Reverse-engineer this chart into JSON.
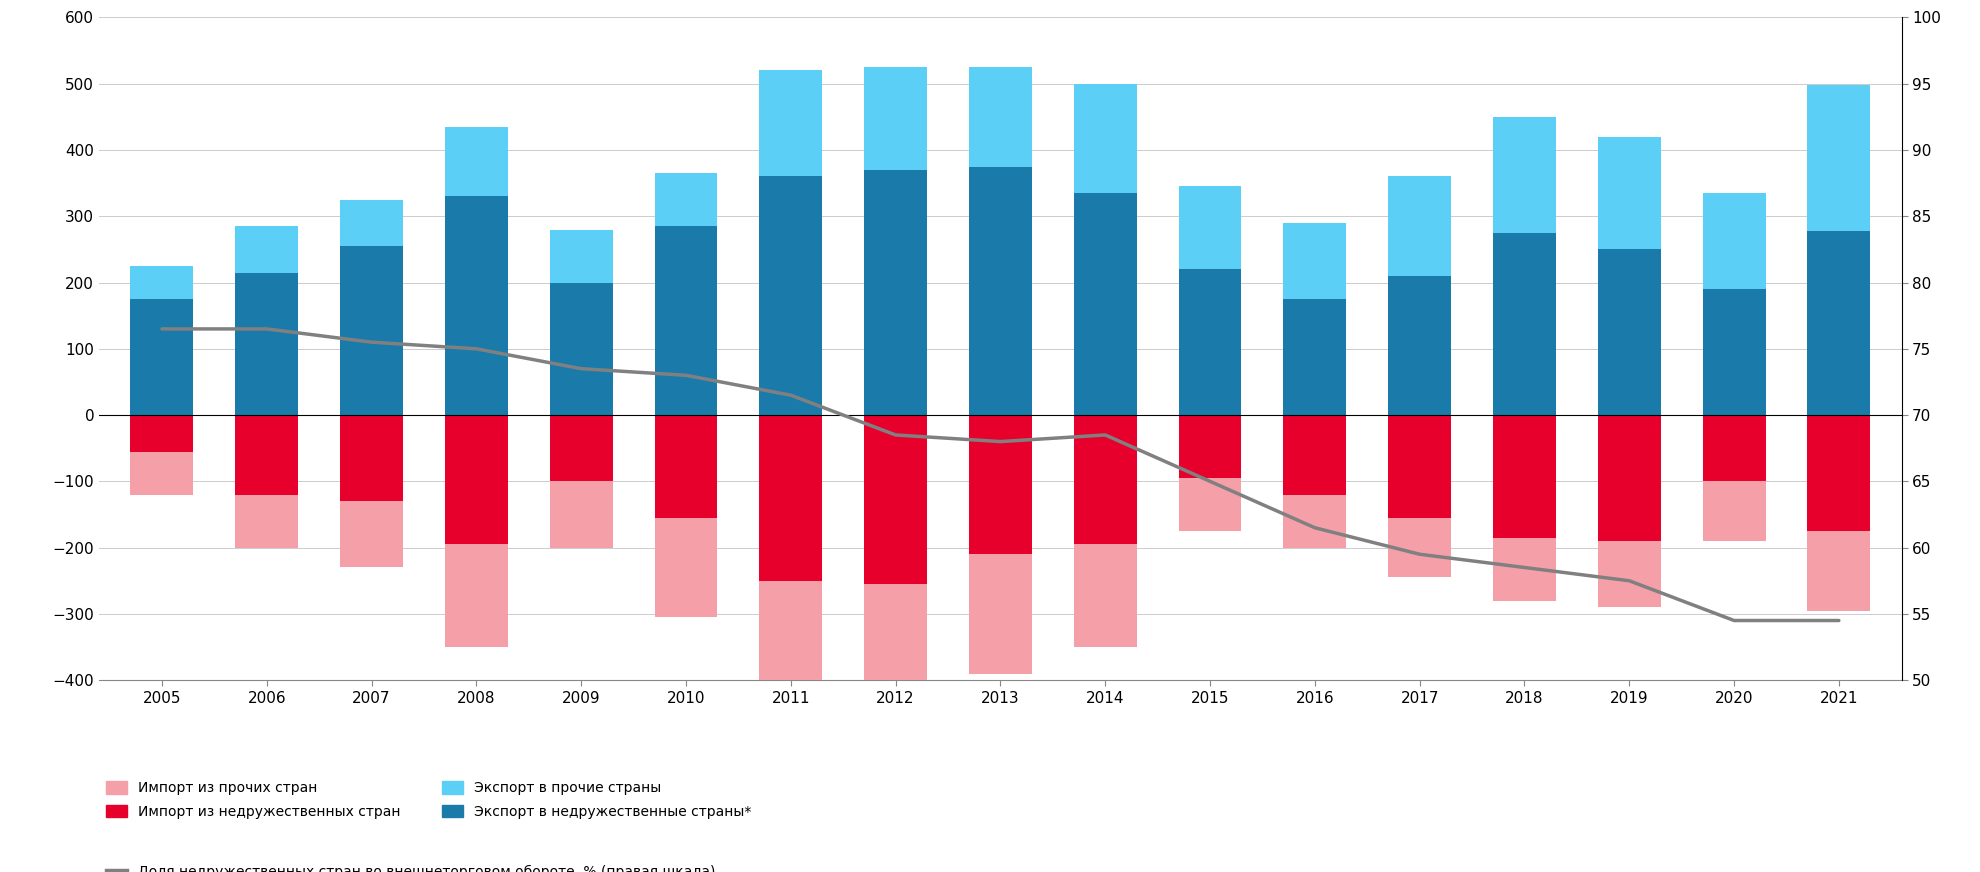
{
  "years": [
    2005,
    2006,
    2007,
    2008,
    2009,
    2010,
    2011,
    2012,
    2013,
    2014,
    2015,
    2016,
    2017,
    2018,
    2019,
    2020,
    2021
  ],
  "export_unfriendly": [
    175,
    215,
    255,
    330,
    200,
    285,
    360,
    370,
    375,
    335,
    220,
    175,
    210,
    275,
    250,
    190,
    278
  ],
  "export_other": [
    50,
    70,
    70,
    105,
    80,
    80,
    160,
    155,
    150,
    165,
    125,
    115,
    150,
    175,
    170,
    145,
    220
  ],
  "import_unfriendly": [
    -55,
    -120,
    -130,
    -195,
    -100,
    -155,
    -250,
    -255,
    -210,
    -195,
    -95,
    -120,
    -155,
    -185,
    -190,
    -100,
    -175
  ],
  "import_other": [
    -65,
    -80,
    -100,
    -155,
    -100,
    -150,
    -200,
    -215,
    -180,
    -155,
    -80,
    -80,
    -90,
    -95,
    -100,
    -90,
    -120
  ],
  "line_share": [
    76.5,
    76.5,
    75.5,
    75.0,
    73.5,
    73.0,
    71.5,
    68.5,
    68.0,
    68.5,
    65.0,
    61.5,
    59.5,
    58.5,
    57.5,
    54.5,
    54.5
  ],
  "bar_width": 0.6,
  "colors": {
    "export_unfriendly": "#1a7aaa",
    "export_other": "#5bcff5",
    "import_unfriendly": "#e8002d",
    "import_other": "#f5a0a8",
    "line": "#808080"
  },
  "ylim_left": [
    -400,
    600
  ],
  "ylim_right": [
    50,
    100
  ],
  "legend_labels": [
    "Импорт из прочих стран",
    "Импорт из недружественных стран",
    "Экспорт в прочие страны",
    "Экспорт в недружественные страны*",
    "Доля недружественных стран во внешнеторговом обороте, % (правая шкала)"
  ],
  "yticks_left": [
    -400,
    -300,
    -200,
    -100,
    0,
    100,
    200,
    300,
    400,
    500,
    600
  ],
  "yticks_right": [
    50,
    55,
    60,
    65,
    70,
    75,
    80,
    85,
    90,
    95,
    100
  ],
  "figsize": [
    19.81,
    8.72
  ],
  "dpi": 100
}
